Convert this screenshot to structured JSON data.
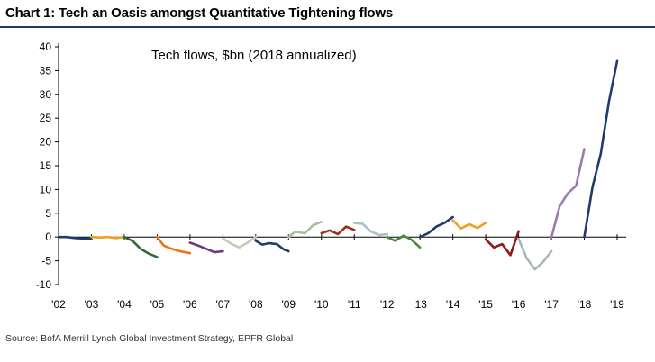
{
  "chart_data": {
    "type": "line",
    "title": "Chart 1: Tech an Oasis amongst Quantitative Tightening flows",
    "inset_title": "Tech flows, $bn (2018 annualized)",
    "source": "Source: BofA Merrill Lynch Global Investment Strategy, EPFR Global",
    "xlabel": "",
    "ylabel": "",
    "xlim": [
      2002,
      2019
    ],
    "ylim": [
      -10,
      40
    ],
    "x_ticks": [
      2002,
      2003,
      2004,
      2005,
      2006,
      2007,
      2008,
      2009,
      2010,
      2011,
      2012,
      2013,
      2014,
      2015,
      2016,
      2017,
      2018,
      2019
    ],
    "x_tick_labels": [
      "'02",
      "'03",
      "'04",
      "'05",
      "'06",
      "'07",
      "'08",
      "'09",
      "'10",
      "'11",
      "'12",
      "'13",
      "'14",
      "'15",
      "'16",
      "'17",
      "'18",
      "'19"
    ],
    "y_ticks": [
      -10,
      -5,
      0,
      5,
      10,
      15,
      20,
      25,
      30,
      35,
      40
    ],
    "y_tick_labels": [
      "-10",
      "-5",
      "0",
      "5",
      "10",
      "15",
      "20",
      "25",
      "30",
      "35",
      "40"
    ],
    "series": [
      {
        "name": "2002",
        "color": "#1f3b6e",
        "x": [
          2002.0,
          2002.25,
          2002.5,
          2002.75,
          2003.0
        ],
        "y": [
          0,
          0,
          -0.2,
          -0.3,
          -0.4
        ]
      },
      {
        "name": "2003",
        "color": "#f0a020",
        "x": [
          2003.0,
          2003.25,
          2003.5,
          2003.75,
          2004.0
        ],
        "y": [
          0,
          -0.1,
          0,
          -0.2,
          0
        ]
      },
      {
        "name": "2004",
        "color": "#2e6b3a",
        "x": [
          2004.0,
          2004.25,
          2004.5,
          2004.75,
          2005.0
        ],
        "y": [
          0,
          -0.8,
          -2.5,
          -3.5,
          -4.2
        ]
      },
      {
        "name": "2005",
        "color": "#e8741c",
        "x": [
          2005.0,
          2005.2,
          2005.45,
          2005.7,
          2006.0
        ],
        "y": [
          0,
          -1.8,
          -2.5,
          -3.0,
          -3.4
        ]
      },
      {
        "name": "2006",
        "color": "#6b3a7a",
        "x": [
          2006.0,
          2006.25,
          2006.5,
          2006.75,
          2007.0
        ],
        "y": [
          -1.2,
          -1.8,
          -2.5,
          -3.2,
          -3.0
        ]
      },
      {
        "name": "2007",
        "color": "#c9c9b8",
        "x": [
          2007.0,
          2007.25,
          2007.5,
          2007.75,
          2008.0
        ],
        "y": [
          -0.3,
          -1.4,
          -2.2,
          -1.2,
          0
        ]
      },
      {
        "name": "2008",
        "color": "#1f3b6e",
        "x": [
          2008.0,
          2008.2,
          2008.4,
          2008.65,
          2008.85,
          2009.0
        ],
        "y": [
          -0.8,
          -1.6,
          -1.3,
          -1.5,
          -2.6,
          -3.0
        ]
      },
      {
        "name": "2009",
        "color": "#a8c09a",
        "x": [
          2009.0,
          2009.2,
          2009.5,
          2009.75,
          2010.0
        ],
        "y": [
          0,
          1.1,
          0.8,
          2.5,
          3.2
        ]
      },
      {
        "name": "2010",
        "color": "#a12c1a",
        "x": [
          2010.0,
          2010.25,
          2010.5,
          2010.75,
          2011.0
        ],
        "y": [
          0.8,
          1.4,
          0.6,
          2.2,
          1.5
        ]
      },
      {
        "name": "2011",
        "color": "#a8c0c8",
        "x": [
          2011.0,
          2011.25,
          2011.5,
          2011.75,
          2012.0
        ],
        "y": [
          3.0,
          2.8,
          1.2,
          0.4,
          0.6
        ]
      },
      {
        "name": "2012",
        "color": "#4c8a3a",
        "x": [
          2012.0,
          2012.25,
          2012.5,
          2012.75,
          2013.0
        ],
        "y": [
          0,
          -0.8,
          0.3,
          -0.6,
          -2.2
        ]
      },
      {
        "name": "2013",
        "color": "#1f3b6e",
        "x": [
          2013.0,
          2013.25,
          2013.5,
          2013.75,
          2014.0
        ],
        "y": [
          0,
          0.8,
          2.2,
          3.0,
          4.2
        ]
      },
      {
        "name": "2014",
        "color": "#f0a020",
        "x": [
          2014.0,
          2014.25,
          2014.5,
          2014.75,
          2015.0
        ],
        "y": [
          3.5,
          1.8,
          2.7,
          1.9,
          3.0
        ]
      },
      {
        "name": "2015",
        "color": "#8b1a1a",
        "x": [
          2015.0,
          2015.25,
          2015.5,
          2015.75,
          2016.0
        ],
        "y": [
          -0.5,
          -2.2,
          -1.5,
          -3.8,
          1.2
        ]
      },
      {
        "name": "2016",
        "color": "#a8b8b0",
        "x": [
          2016.0,
          2016.25,
          2016.5,
          2016.75,
          2017.0
        ],
        "y": [
          -0.4,
          -4.5,
          -6.8,
          -5.2,
          -3.0
        ]
      },
      {
        "name": "2017",
        "color": "#9a7bb0",
        "x": [
          2017.0,
          2017.25,
          2017.5,
          2017.75,
          2018.0
        ],
        "y": [
          0,
          6.5,
          9.2,
          10.8,
          18.5
        ]
      },
      {
        "name": "2018",
        "color": "#1f3b6e",
        "x": [
          2018.0,
          2018.25,
          2018.5,
          2018.75,
          2019.0
        ],
        "y": [
          0,
          10.5,
          17.5,
          28.5,
          37.0
        ]
      }
    ]
  }
}
